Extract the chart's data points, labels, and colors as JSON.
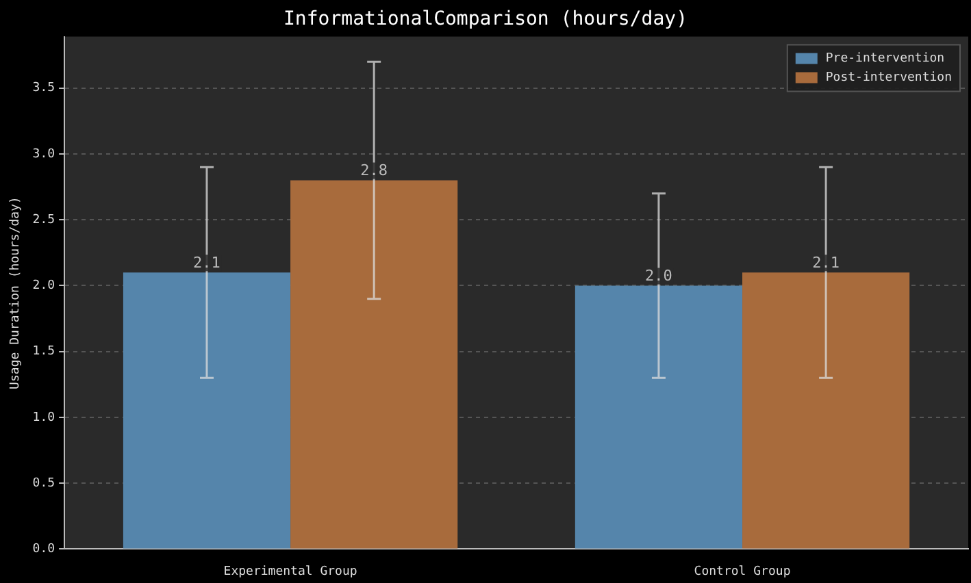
{
  "chart_data": {
    "type": "bar",
    "title": "InformationalComparison (hours/day)",
    "ylabel": "Usage Duration (hours/day)",
    "categories": [
      "Experimental Group",
      "Control Group"
    ],
    "series": [
      {
        "name": "Pre-intervention",
        "color": "#5585ab",
        "values": [
          2.1,
          2.0
        ],
        "errors": [
          0.8,
          0.7
        ],
        "value_labels": [
          "2.1",
          "2.0"
        ]
      },
      {
        "name": "Post-intervention",
        "color": "#a86b3c",
        "values": [
          2.8,
          2.1
        ],
        "errors": [
          0.9,
          0.8
        ],
        "value_labels": [
          "2.8",
          "2.1"
        ]
      }
    ],
    "ylim": [
      0,
      3.89
    ],
    "yticks": [
      {
        "value": 0,
        "label": "0.0"
      },
      {
        "value": 0.5,
        "label": "0.5"
      },
      {
        "value": 1,
        "label": "1.0"
      },
      {
        "value": 1.5,
        "label": "1.5"
      },
      {
        "value": 2,
        "label": "2.0"
      },
      {
        "value": 2.5,
        "label": "2.5"
      },
      {
        "value": 3,
        "label": "3.0"
      },
      {
        "value": 3.5,
        "label": "3.5"
      }
    ],
    "grid": "y",
    "legend": "top right"
  }
}
